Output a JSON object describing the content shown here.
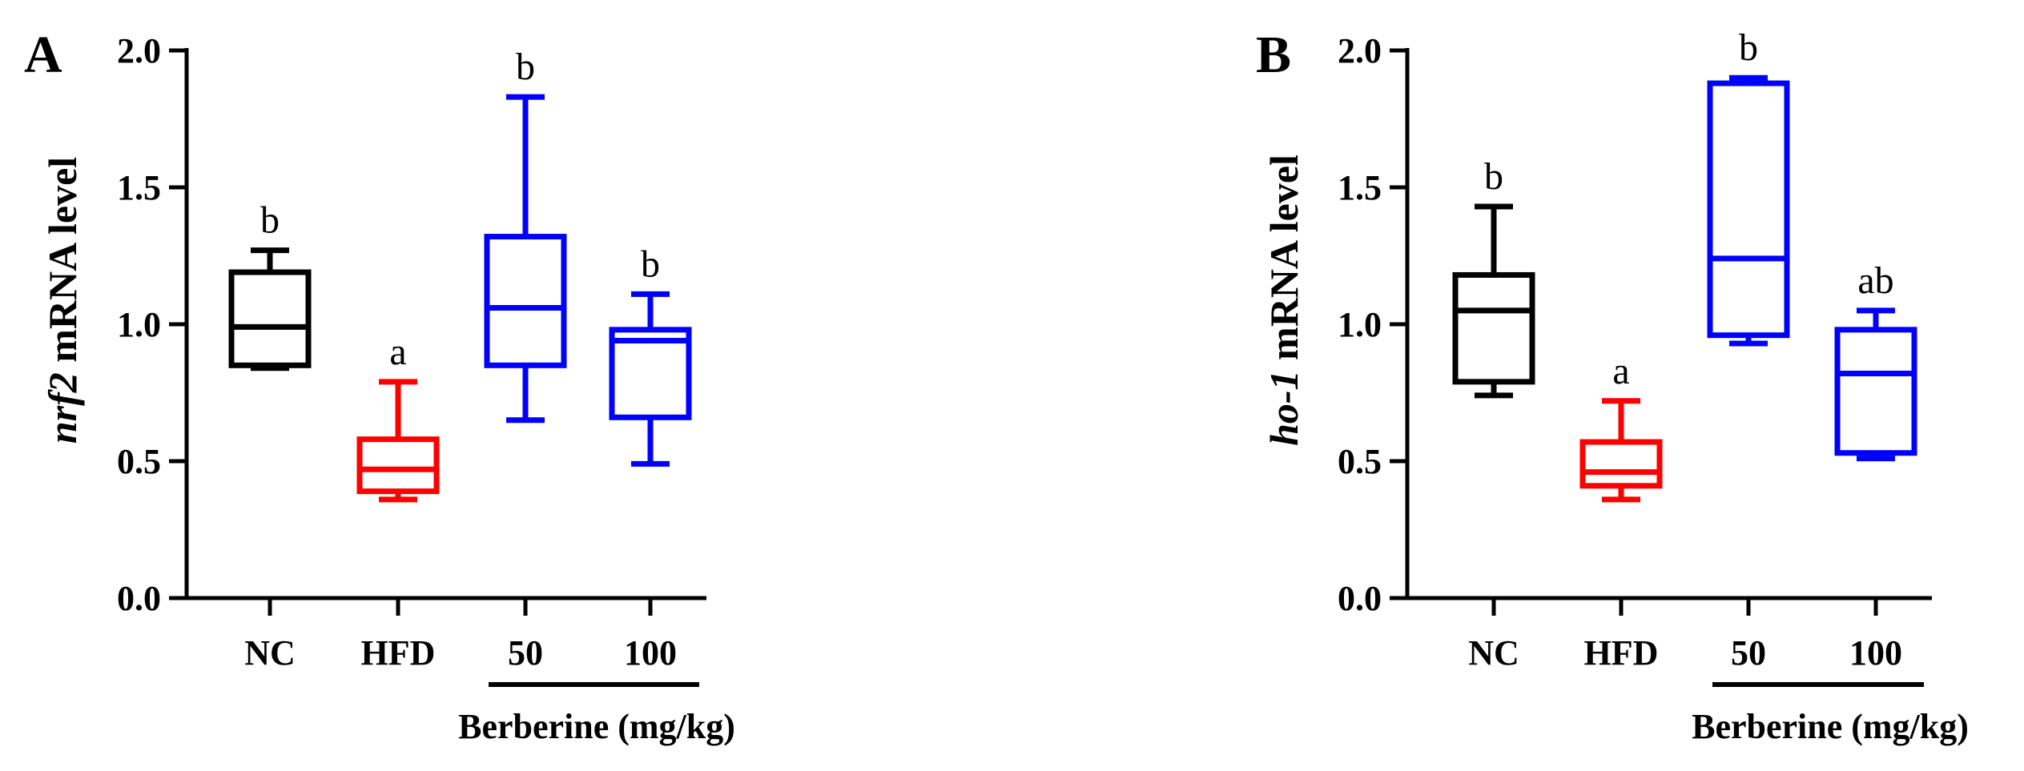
{
  "colors": {
    "NC": "#000000",
    "HFD": "#ff0000",
    "Berberine": "#0000ff",
    "axis": "#000000"
  },
  "chart_data": [
    {
      "panel": "A",
      "type": "box",
      "ylabel_italic": "nrf2",
      "ylabel_rest": " mRNA level",
      "ylim": [
        0,
        2.0
      ],
      "yticks": [
        "0.0",
        "0.5",
        "1.0",
        "1.5",
        "2.0"
      ],
      "categories": [
        "NC",
        "HFD",
        "50",
        "100"
      ],
      "group_label": "Berberine (mg/kg)",
      "boxes": [
        {
          "category": "NC",
          "min": 0.84,
          "q1": 0.85,
          "median": 0.99,
          "q3": 1.19,
          "max": 1.27,
          "sig": "b",
          "color_key": "NC"
        },
        {
          "category": "HFD",
          "min": 0.36,
          "q1": 0.39,
          "median": 0.47,
          "q3": 0.58,
          "max": 0.79,
          "sig": "a",
          "color_key": "HFD"
        },
        {
          "category": "50",
          "min": 0.65,
          "q1": 0.85,
          "median": 1.06,
          "q3": 1.32,
          "max": 1.83,
          "sig": "b",
          "color_key": "Berberine"
        },
        {
          "category": "100",
          "min": 0.49,
          "q1": 0.66,
          "median": 0.94,
          "q3": 0.98,
          "max": 1.11,
          "sig": "b",
          "color_key": "Berberine"
        }
      ]
    },
    {
      "panel": "B",
      "type": "box",
      "ylabel_italic": "ho-1",
      "ylabel_rest": " mRNA level",
      "ylim": [
        0,
        2.0
      ],
      "yticks": [
        "0.0",
        "0.5",
        "1.0",
        "1.5",
        "2.0"
      ],
      "categories": [
        "NC",
        "HFD",
        "50",
        "100"
      ],
      "group_label": "Berberine (mg/kg)",
      "boxes": [
        {
          "category": "NC",
          "min": 0.74,
          "q1": 0.79,
          "median": 1.05,
          "q3": 1.18,
          "max": 1.43,
          "sig": "b",
          "color_key": "NC"
        },
        {
          "category": "HFD",
          "min": 0.36,
          "q1": 0.41,
          "median": 0.46,
          "q3": 0.57,
          "max": 0.72,
          "sig": "a",
          "color_key": "HFD"
        },
        {
          "category": "50",
          "min": 0.93,
          "q1": 0.96,
          "median": 1.24,
          "q3": 1.88,
          "max": 1.9,
          "sig": "b",
          "color_key": "Berberine"
        },
        {
          "category": "100",
          "min": 0.51,
          "q1": 0.53,
          "median": 0.82,
          "q3": 0.98,
          "max": 1.05,
          "sig": "ab",
          "color_key": "Berberine"
        }
      ]
    }
  ]
}
